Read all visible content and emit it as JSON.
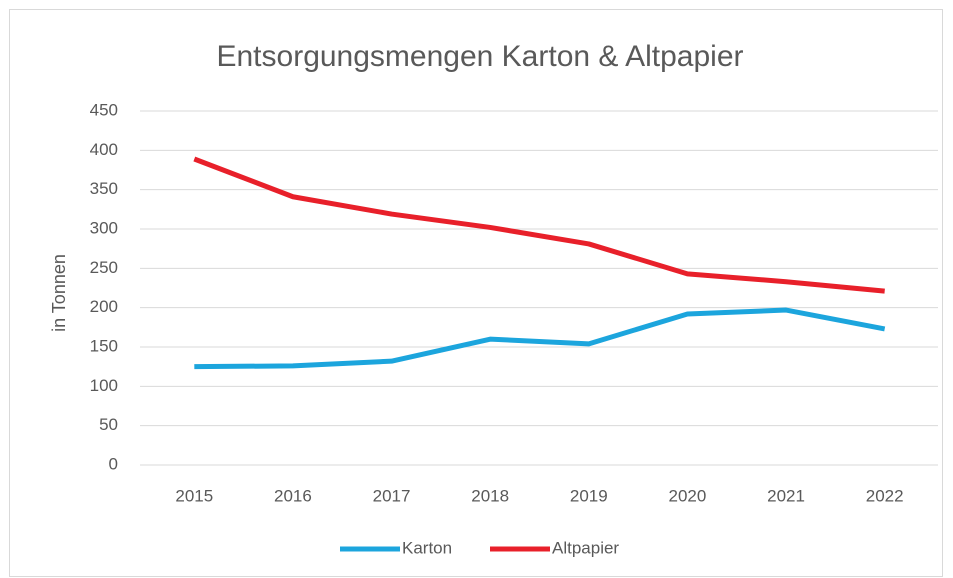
{
  "chart_data": {
    "type": "line",
    "title": "Entsorgungsmengen Karton & Altpapier",
    "y_label": "in Tonnen",
    "categories": [
      "2015",
      "2016",
      "2017",
      "2018",
      "2019",
      "2020",
      "2021",
      "2022"
    ],
    "series": [
      {
        "name": "Karton",
        "color": "#1ca5dd",
        "values": [
          125,
          126,
          132,
          160,
          154,
          192,
          197,
          173
        ]
      },
      {
        "name": "Altpapier",
        "color": "#e8202a",
        "values": [
          389,
          341,
          319,
          302,
          281,
          243,
          233,
          221
        ]
      }
    ],
    "ylim": [
      0,
      450
    ],
    "yticks": [
      0,
      50,
      100,
      150,
      200,
      250,
      300,
      350,
      400,
      450
    ],
    "grid": true,
    "legend": "bottom"
  }
}
